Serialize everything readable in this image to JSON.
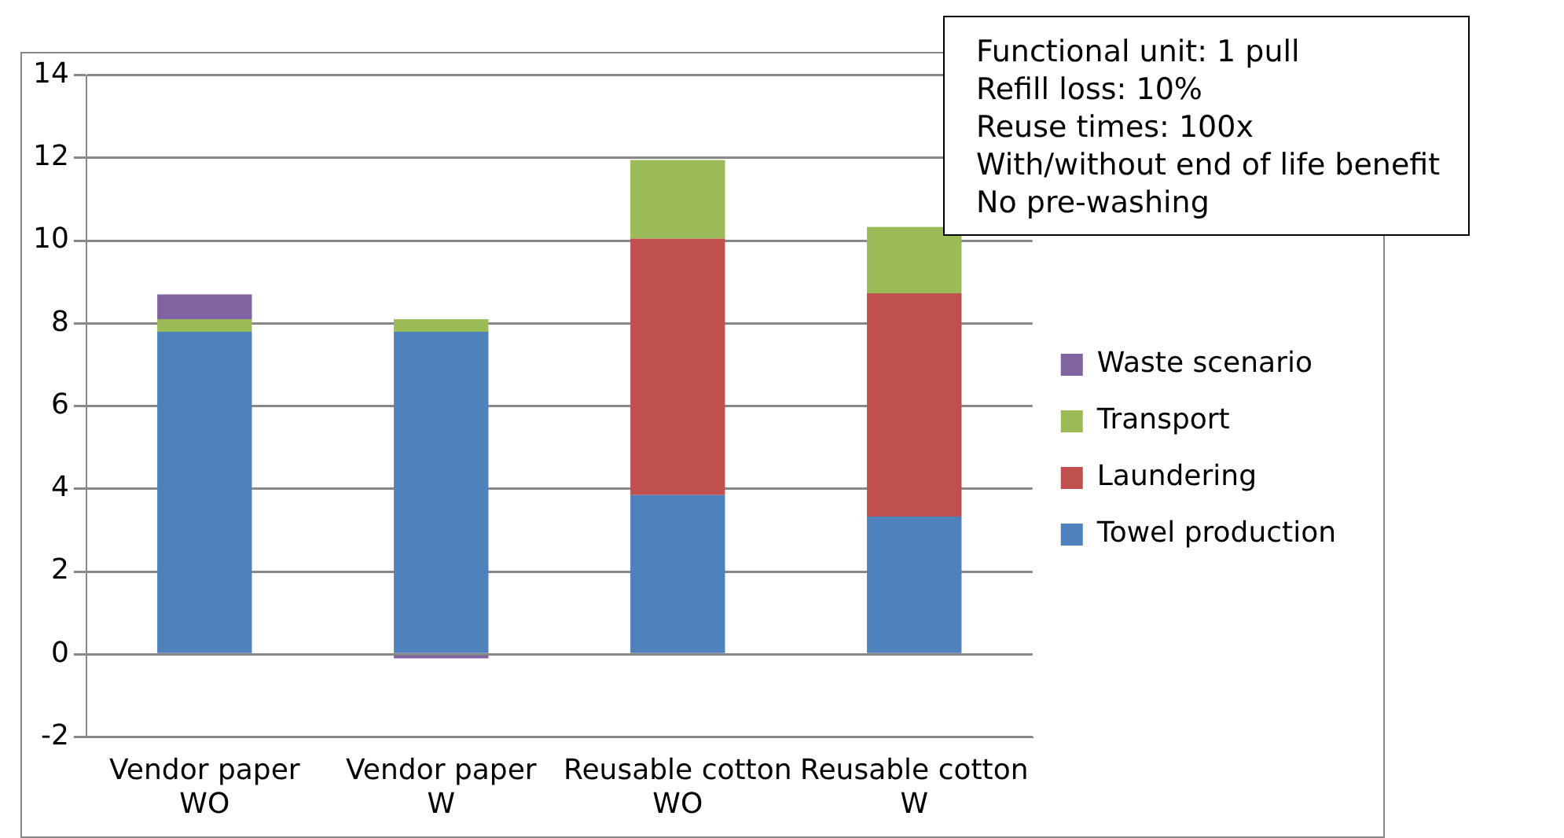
{
  "chart_data": {
    "type": "bar",
    "stacked": true,
    "categories": [
      "Vendor paper WO",
      "Vendor paper W",
      "Reusable cotton WO",
      "Reusable cotton W"
    ],
    "series": [
      {
        "name": "Towel production",
        "color": "#4f81bd",
        "values": [
          7.8,
          7.8,
          3.85,
          3.33
        ]
      },
      {
        "name": "Laundering",
        "color": "#c0504d",
        "values": [
          0,
          0,
          6.2,
          5.4
        ]
      },
      {
        "name": "Transport",
        "color": "#9bbb59",
        "values": [
          0.3,
          0.3,
          1.9,
          1.6
        ]
      },
      {
        "name": "Waste scenario",
        "color": "#8064a2",
        "values": [
          0.6,
          -0.1,
          0,
          0
        ]
      }
    ],
    "ylim": [
      -2,
      14
    ],
    "yticks": [
      -2,
      0,
      2,
      4,
      6,
      8,
      10,
      12,
      14
    ],
    "grid": "y",
    "legend": "right",
    "annotations": [
      "Functional unit: 1 pull",
      "Refill loss: 10%",
      "Reuse times: 100x",
      "With/without end of life benefit",
      "No pre-washing"
    ]
  }
}
